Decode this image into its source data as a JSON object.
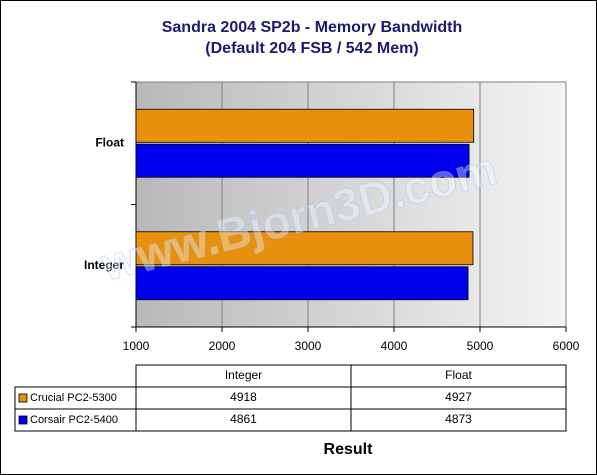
{
  "chart_data": {
    "type": "hbar",
    "title": "Sandra 2004 SP2b - Memory Bandwidth",
    "subtitle": "(Default 204 FSB / 542 Mem)",
    "x_label": "Result",
    "watermark": "www.Bjorn3D.com",
    "categories": [
      "Integer",
      "Float"
    ],
    "series": [
      {
        "name": "Crucial PC2-5300",
        "color": "#e8900c",
        "values": [
          4918,
          4927
        ]
      },
      {
        "name": "Corsair PC2-5400",
        "color": "#0000ee",
        "values": [
          4861,
          4873
        ]
      }
    ],
    "xlim": [
      1000,
      6000
    ],
    "xticks": [
      1000,
      2000,
      3000,
      4000,
      5000,
      6000
    ],
    "grid": true
  }
}
